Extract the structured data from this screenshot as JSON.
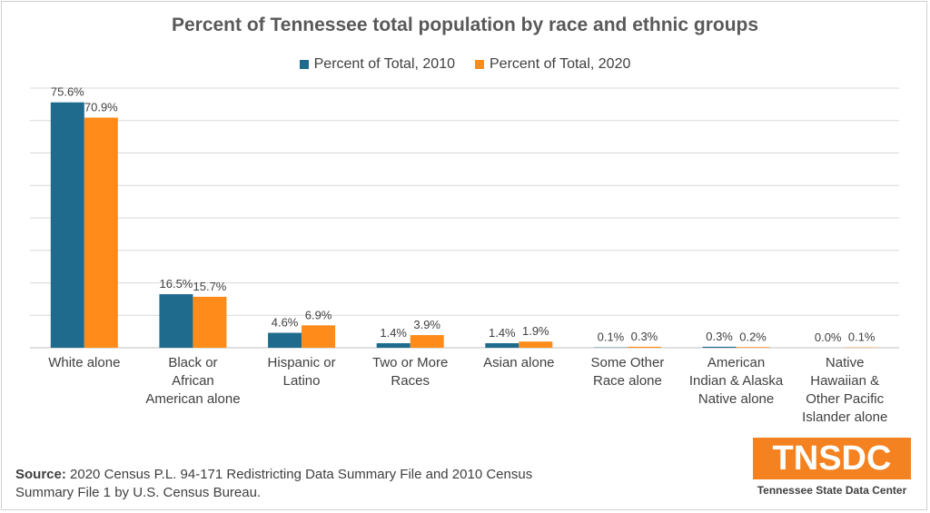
{
  "colors": {
    "series_2010": "#1f6b8e",
    "series_2020": "#ff8c1a",
    "grid": "#d9d9d9",
    "logo": "#f58220"
  },
  "chart_data": {
    "type": "bar",
    "title": "Percent of Tennessee total population by race and ethnic groups",
    "categories": [
      [
        "White alone"
      ],
      [
        "Black or",
        "African",
        "American alone"
      ],
      [
        "Hispanic or",
        "Latino"
      ],
      [
        "Two or More",
        "Races"
      ],
      [
        "Asian alone"
      ],
      [
        "Some Other",
        "Race alone"
      ],
      [
        "American",
        "Indian & Alaska",
        "Native alone"
      ],
      [
        "Native",
        "Hawaiian &",
        "Other Pacific",
        "Islander alone"
      ]
    ],
    "series": [
      {
        "name": "Percent of Total, 2010",
        "values": [
          75.6,
          16.5,
          4.6,
          1.4,
          1.4,
          0.1,
          0.3,
          0.0
        ],
        "labels": [
          "75.6%",
          "16.5%",
          "4.6%",
          "1.4%",
          "1.4%",
          "0.1%",
          "0.3%",
          "0.0%"
        ]
      },
      {
        "name": "Percent of Total, 2020",
        "values": [
          70.9,
          15.7,
          6.9,
          3.9,
          1.9,
          0.3,
          0.2,
          0.1
        ],
        "labels": [
          "70.9%",
          "15.7%",
          "6.9%",
          "3.9%",
          "1.9%",
          "0.3%",
          "0.2%",
          "0.1%"
        ]
      }
    ],
    "ylim": [
      0,
      80
    ],
    "grid": true,
    "legend_position": "top"
  },
  "source": {
    "label": "Source:",
    "line1": "2020 Census P.L. 94-171 Redistricting Data Summary File and 2010 Census",
    "line2": "Summary File 1 by U.S. Census Bureau."
  },
  "logo": {
    "text": "TNSDC",
    "subtitle": "Tennessee State Data Center"
  }
}
